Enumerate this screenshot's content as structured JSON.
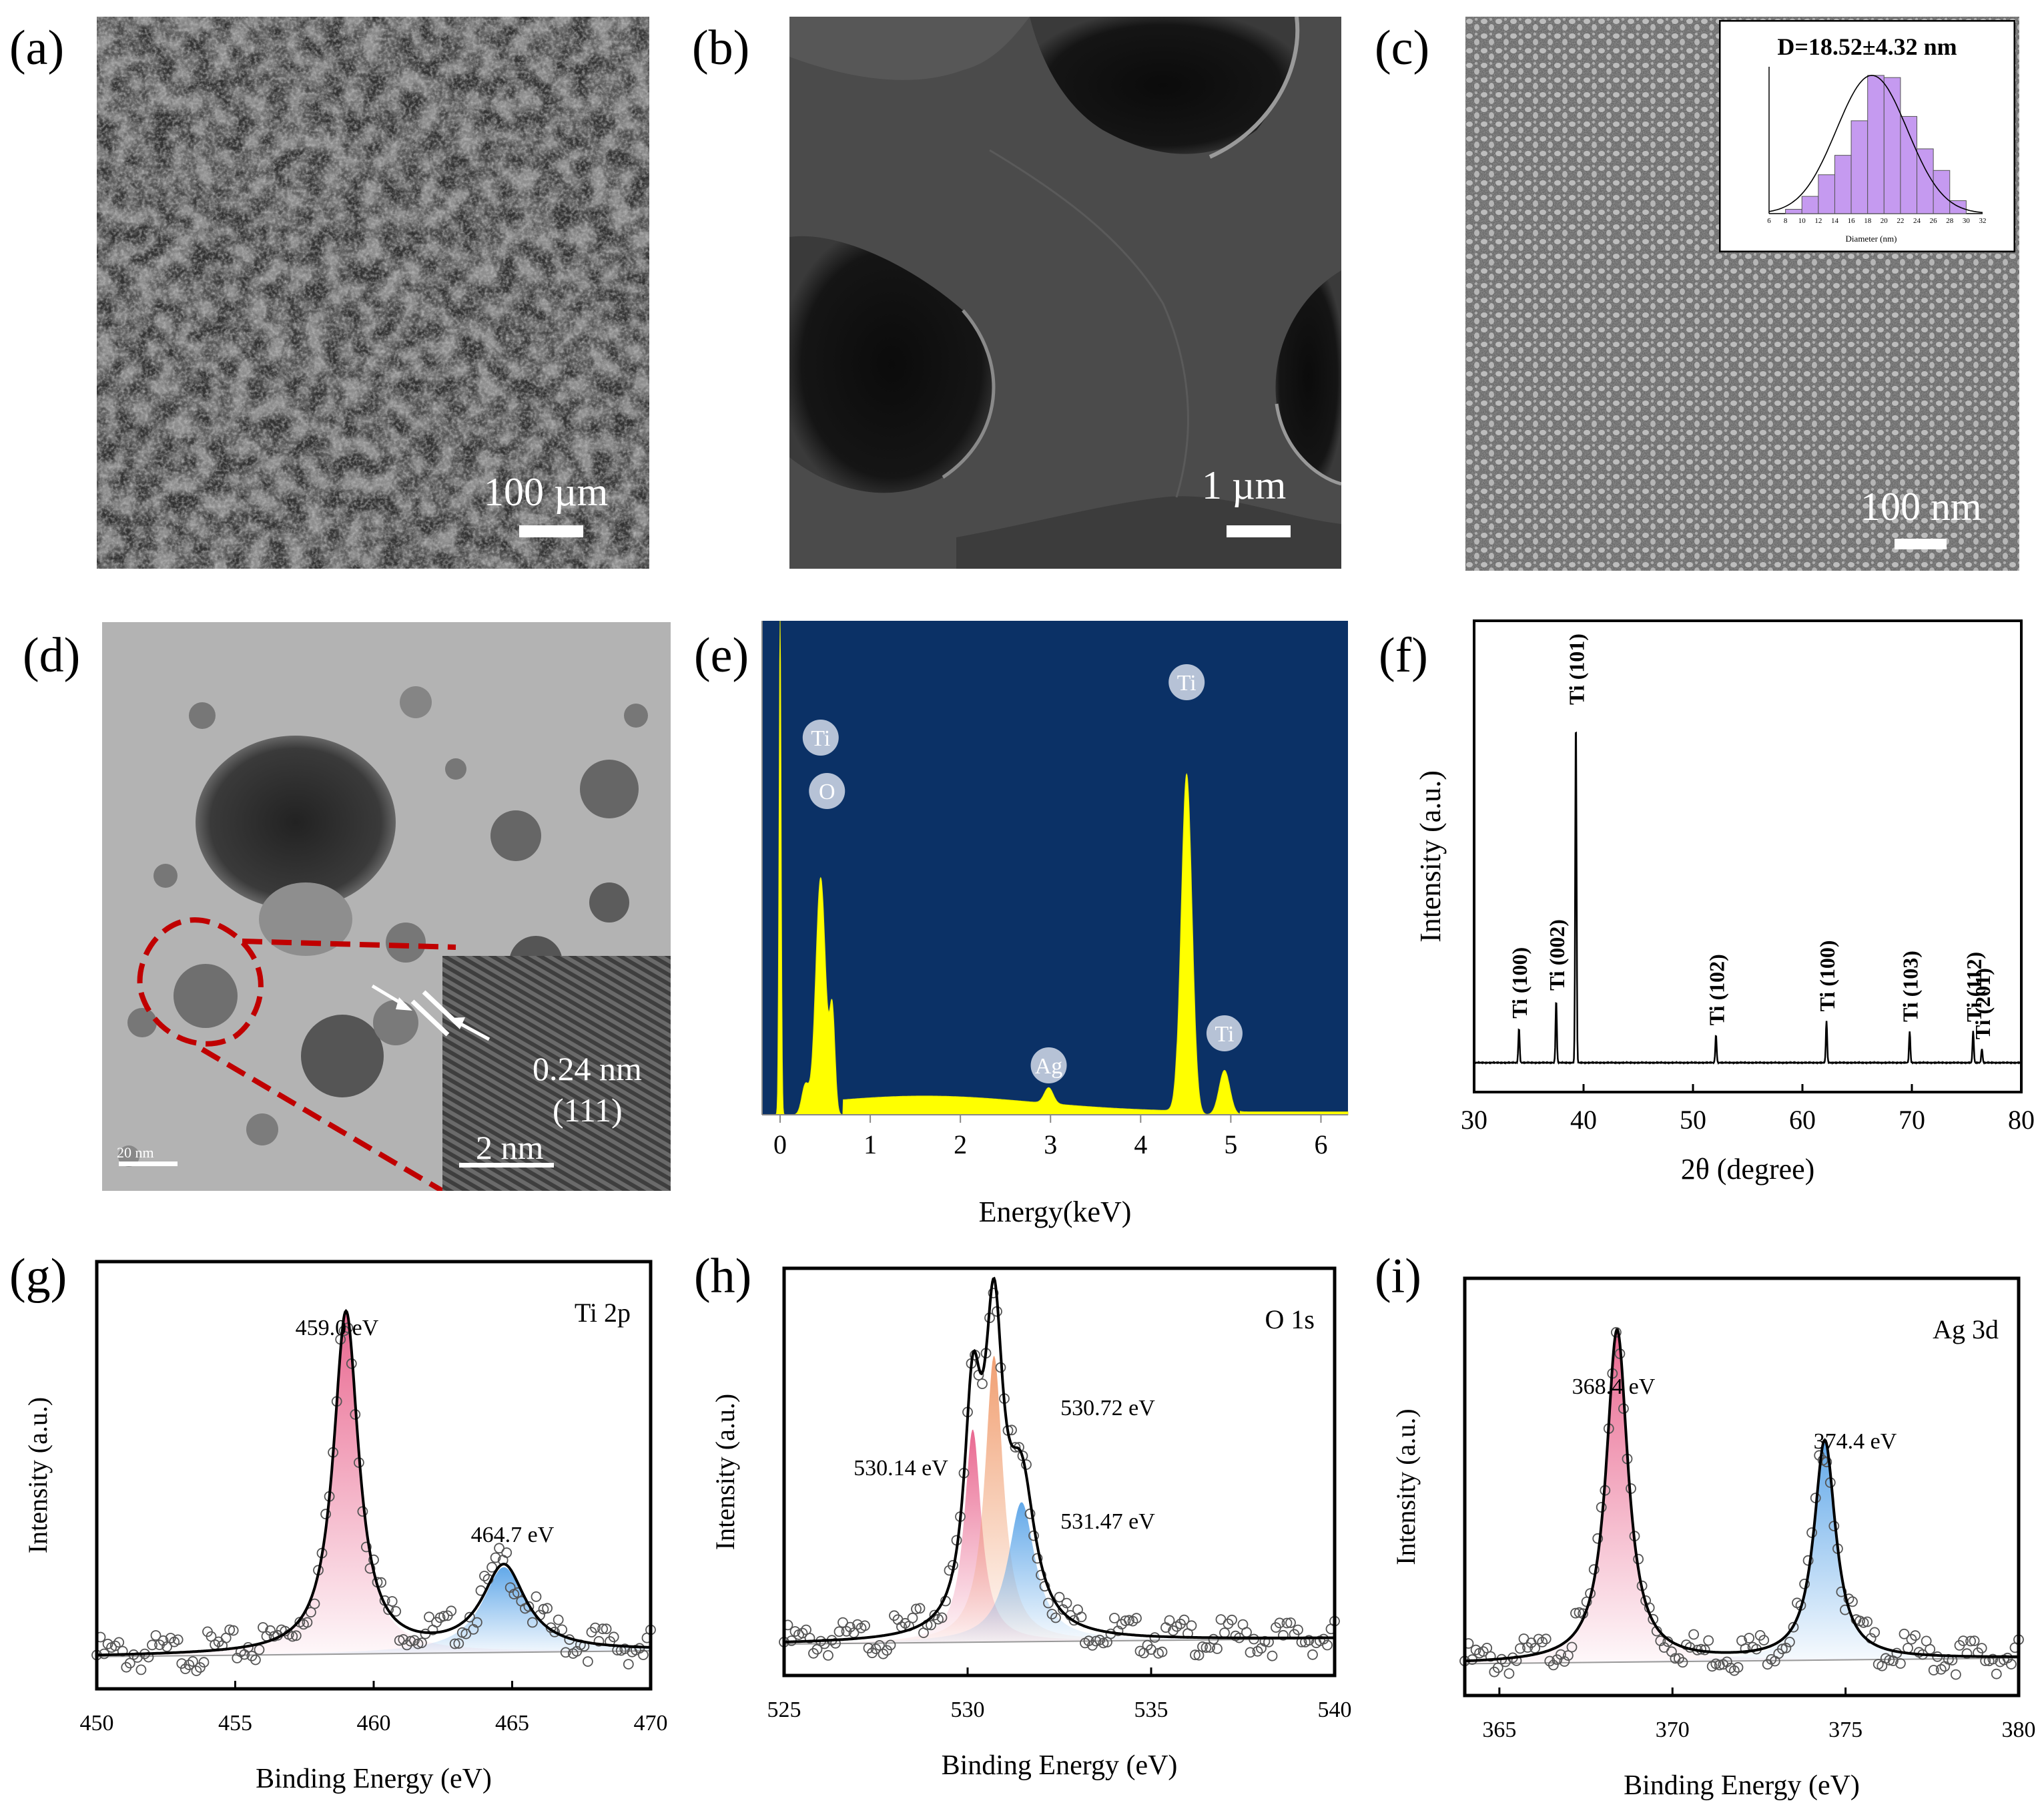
{
  "panels": {
    "a": {
      "label": "(a)",
      "scale": "100 µm"
    },
    "b": {
      "label": "(b)",
      "scale": "1 µm"
    },
    "c": {
      "label": "(c)",
      "scale": "100 nm",
      "inset": {
        "title": "D=18.52±4.32 nm",
        "xlabel": "Diameter (nm)",
        "ticks": [
          "6",
          "8",
          "10",
          "12",
          "14",
          "16",
          "18",
          "20",
          "22",
          "24",
          "26",
          "28",
          "30",
          "32"
        ]
      }
    },
    "d": {
      "label": "(d)",
      "scale_main": "20 nm",
      "scale_inset": "2 nm",
      "spacing": "0.24 nm",
      "plane": "(111)"
    },
    "e": {
      "label": "(e)"
    },
    "f": {
      "label": "(f)"
    },
    "g": {
      "label": "(g)",
      "element": "Ti 2p"
    },
    "h": {
      "label": "(h)",
      "element": "O 1s"
    },
    "i": {
      "label": "(i)",
      "element": "Ag 3d"
    }
  },
  "chart_data": [
    {
      "id": "c-inset",
      "type": "bar",
      "title": "D=18.52±4.32 nm",
      "xlabel": "Diameter (nm)",
      "xlim": [
        6,
        32
      ],
      "bin_edges": [
        8,
        10,
        12,
        14,
        16,
        18,
        20,
        22,
        24,
        26,
        28,
        30
      ],
      "values": [
        2,
        8,
        18,
        27,
        43,
        64,
        63,
        45,
        30,
        20,
        6
      ],
      "fit": "gaussian",
      "bar_color": "#c59af0"
    },
    {
      "id": "e",
      "type": "area",
      "xlabel": "Energy(keV)",
      "xlim": [
        -0.2,
        6.3
      ],
      "xticks": [
        0,
        1,
        2,
        3,
        4,
        5,
        6
      ],
      "ylim": [
        0,
        100
      ],
      "background_color": "#0b3166",
      "fill_color": "#ffff00",
      "peaks": [
        {
          "label": "Ti",
          "x": 0.45,
          "y": 48
        },
        {
          "label": "O",
          "x": 0.52,
          "y": 44
        },
        {
          "label": "Ag",
          "x": 2.98,
          "y": 5
        },
        {
          "label": "Ti",
          "x": 4.51,
          "y": 69
        },
        {
          "label": "Ti",
          "x": 4.93,
          "y": 9
        }
      ]
    },
    {
      "id": "f",
      "type": "line",
      "xlabel": "2θ (degree)",
      "ylabel": "Intensity (a.u.)",
      "xlim": [
        30,
        80
      ],
      "xticks": [
        30,
        40,
        50,
        60,
        70,
        80
      ],
      "peaks": [
        {
          "label": "Ti (100)",
          "x": 34.1,
          "y": 10
        },
        {
          "label": "Ti (002)",
          "x": 37.5,
          "y": 18
        },
        {
          "label": "Ti (101)",
          "x": 39.3,
          "y": 100
        },
        {
          "label": "Ti (102)",
          "x": 52.1,
          "y": 8
        },
        {
          "label": "Ti (100)",
          "x": 62.2,
          "y": 12
        },
        {
          "label": "Ti (103)",
          "x": 69.8,
          "y": 9
        },
        {
          "label": "Ti (112)",
          "x": 75.6,
          "y": 9
        },
        {
          "label": "Ti (201)",
          "x": 76.4,
          "y": 4
        }
      ]
    },
    {
      "id": "g",
      "type": "line",
      "xlabel": "Binding Energy (eV)",
      "ylabel": "Intensity (a.u.)",
      "xlim": [
        450,
        470
      ],
      "xticks": [
        450,
        455,
        460,
        465,
        470
      ],
      "components": [
        {
          "label": "459.0 eV",
          "center": 459.0,
          "height": 0.88,
          "width": 0.55,
          "color": "#e8608a"
        },
        {
          "label": "464.7 eV",
          "center": 464.7,
          "height": 0.22,
          "width": 0.95,
          "color": "#5aa4e8"
        }
      ]
    },
    {
      "id": "h",
      "type": "line",
      "xlabel": "Binding Energy (eV)",
      "ylabel": "Intensity (a.u.)",
      "xlim": [
        525,
        540
      ],
      "xticks": [
        525,
        530,
        535,
        540
      ],
      "components": [
        {
          "label": "530.14 eV",
          "center": 530.14,
          "height": 0.58,
          "width": 0.28,
          "color": "#e8608a"
        },
        {
          "label": "530.72 eV",
          "center": 530.72,
          "height": 0.78,
          "width": 0.3,
          "color": "#f09a6a"
        },
        {
          "label": "531.47 eV",
          "center": 531.47,
          "height": 0.38,
          "width": 0.45,
          "color": "#5aa4e8"
        }
      ]
    },
    {
      "id": "i",
      "type": "line",
      "xlabel": "Binding Energy (eV)",
      "ylabel": "Intensity (a.u.)",
      "xlim": [
        364,
        380
      ],
      "xticks": [
        365,
        370,
        375,
        380
      ],
      "components": [
        {
          "label": "368.4 eV",
          "center": 368.4,
          "height": 0.88,
          "width": 0.38,
          "color": "#e8608a"
        },
        {
          "label": "374.4 eV",
          "center": 374.4,
          "height": 0.58,
          "width": 0.38,
          "color": "#5aa4e8"
        }
      ]
    }
  ]
}
